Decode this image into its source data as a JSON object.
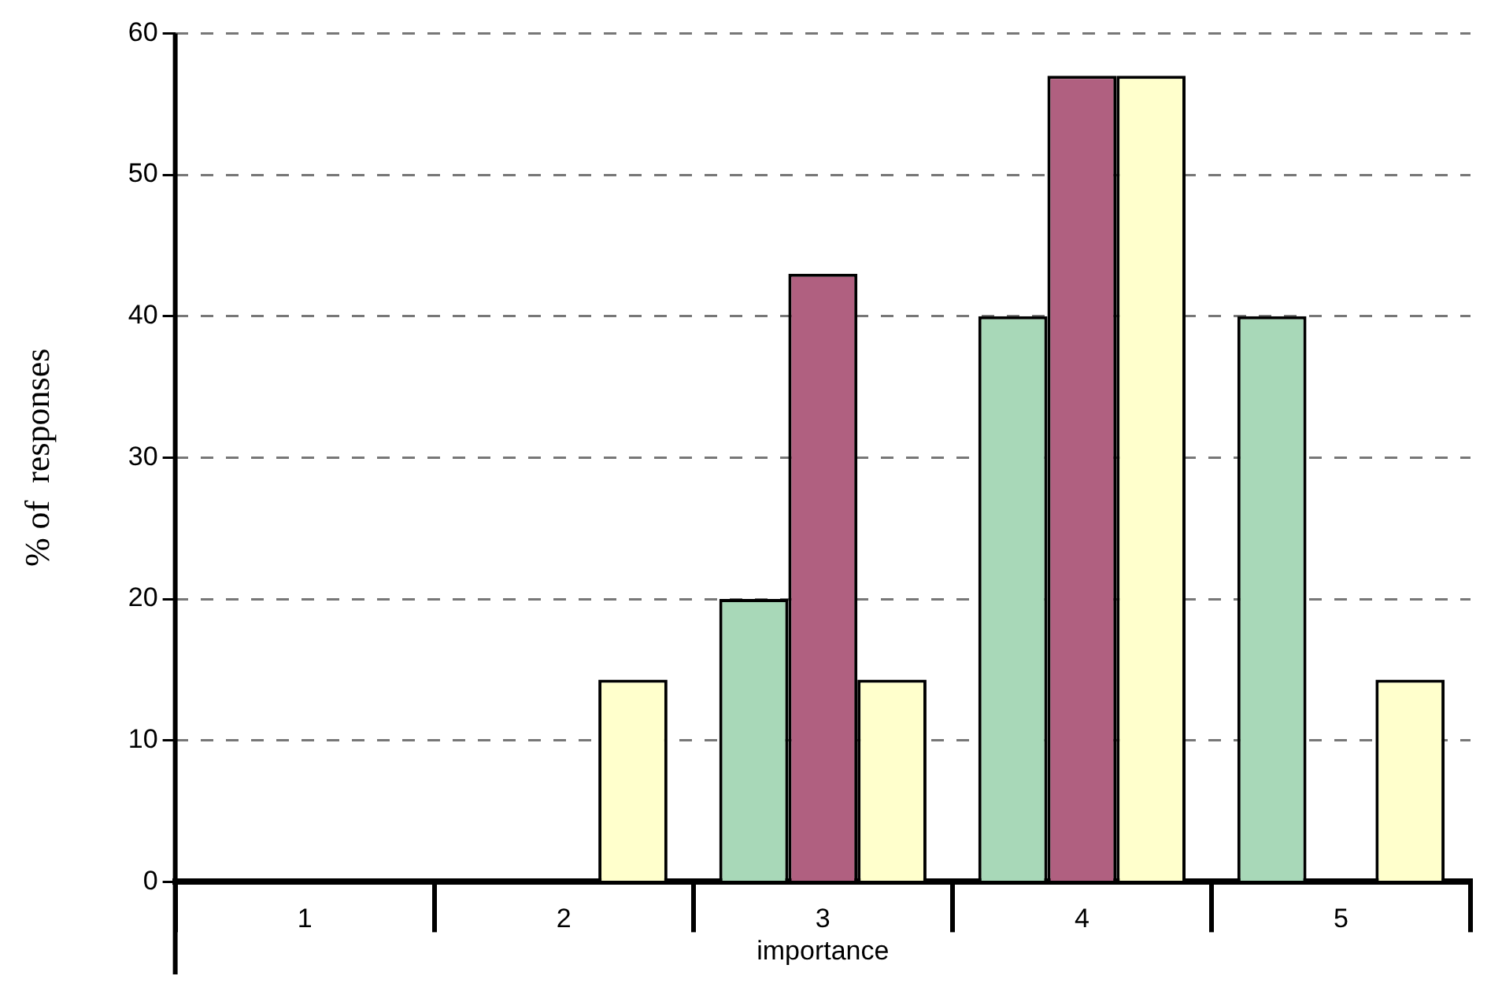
{
  "chart_data": {
    "type": "bar",
    "xlabel": "importance",
    "ylabel": "% of  responses",
    "categories": [
      "1",
      "2",
      "3",
      "4",
      "5"
    ],
    "series": [
      {
        "color": "#a8d8b8",
        "values": [
          null,
          null,
          20,
          40,
          40
        ]
      },
      {
        "color": "#b06080",
        "values": [
          null,
          null,
          43,
          57,
          null
        ]
      },
      {
        "color": "#ffffcc",
        "values": [
          null,
          14.3,
          14.3,
          57,
          14.3
        ]
      }
    ],
    "ylim": [
      0,
      60
    ],
    "yticks": [
      0,
      10,
      20,
      30,
      40,
      50,
      60
    ],
    "grid": "y",
    "legend": false
  }
}
